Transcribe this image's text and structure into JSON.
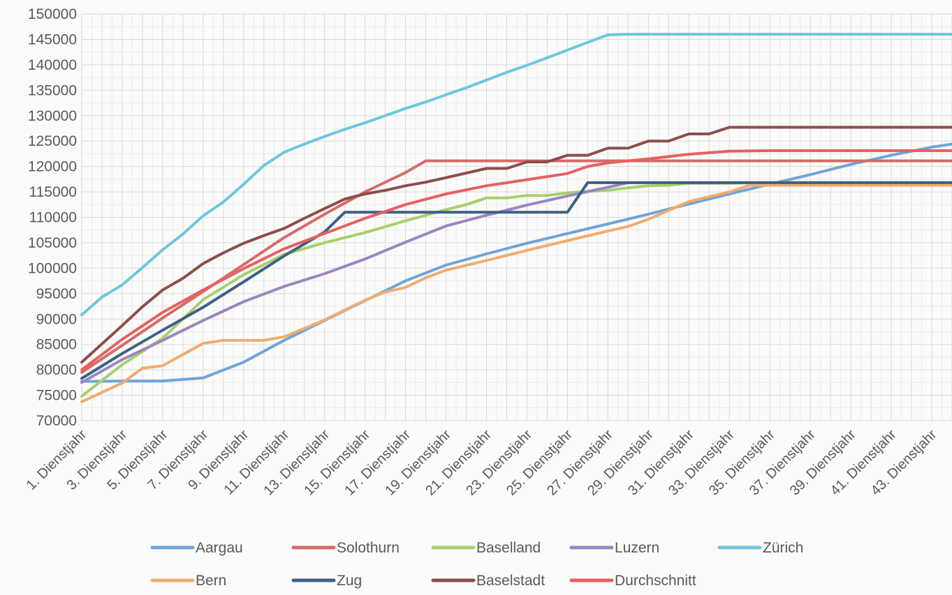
{
  "chart_data": {
    "type": "line",
    "title": "",
    "xlabel": "",
    "ylabel": "",
    "ylim": [
      70000,
      150000
    ],
    "y_ticks": [
      70000,
      75000,
      80000,
      85000,
      90000,
      95000,
      100000,
      105000,
      110000,
      115000,
      120000,
      125000,
      130000,
      135000,
      140000,
      145000,
      150000
    ],
    "x_tick_labels": [
      "1. Dienstjahr",
      "3. Dienstjahr",
      "5. Dienstjahr",
      "7. Dienstjahr",
      "9. Dienstjahr",
      "11. Dienstjahr",
      "13. Dienstjahr",
      "15. Dienstjahr",
      "17. Dienstjahr",
      "19. Dienstjahr",
      "21. Dienstjahr",
      "23. Dienstjahr",
      "25. Dienstjahr",
      "27. Dienstjahr",
      "29. Dienstjahr",
      "31. Dienstjahr",
      "33. Dienstjahr",
      "35. Dienstjahr",
      "37. Dienstjahr",
      "39. Dienstjahr",
      "41. Dienstjahr",
      "43. Dienstjahr"
    ],
    "grid": true,
    "legend_position": "bottom",
    "x_breakpoints": [
      1,
      2,
      3,
      4,
      5,
      6,
      7,
      8,
      9,
      10,
      11,
      12,
      13,
      14,
      15,
      16,
      17,
      18,
      19,
      20,
      21,
      22,
      23,
      24,
      25,
      26,
      27,
      28,
      29,
      30,
      31,
      32,
      33,
      34,
      35,
      36,
      37,
      38,
      39,
      40,
      41,
      42,
      43,
      44
    ],
    "series": [
      {
        "name": "Aargau",
        "color": "#6ea5d8",
        "x": [
          1,
          3,
          5,
          7,
          9,
          11,
          13,
          15,
          17,
          19,
          21,
          23,
          25,
          27,
          29,
          31,
          33,
          35,
          37,
          39,
          41,
          43,
          44
        ],
        "values": [
          77700,
          77800,
          77800,
          78400,
          81500,
          85800,
          89700,
          93600,
          97500,
          100600,
          102800,
          104900,
          106800,
          108700,
          110600,
          112600,
          114600,
          116500,
          118400,
          120400,
          122200,
          123800,
          124400
        ]
      },
      {
        "name": "Solothurn",
        "color": "#d66b68",
        "x": [
          1,
          3,
          5,
          7,
          9,
          11,
          13,
          15,
          17,
          18,
          20,
          44
        ],
        "values": [
          79500,
          84800,
          90200,
          95400,
          100700,
          106000,
          110600,
          115000,
          118800,
          121100,
          121100,
          121100
        ]
      },
      {
        "name": "Baselland",
        "color": "#a8cf6c",
        "x": [
          1,
          3,
          5,
          7,
          9,
          11,
          13,
          15,
          17,
          19,
          20,
          21,
          22,
          23,
          24,
          25,
          26,
          27,
          28,
          29,
          30,
          31,
          33,
          35,
          44
        ],
        "values": [
          74800,
          81000,
          86200,
          93800,
          98700,
          102700,
          105000,
          107000,
          109300,
          111500,
          112500,
          113800,
          113800,
          114300,
          114300,
          114800,
          115100,
          115300,
          115800,
          116200,
          116300,
          116700,
          116700,
          116800,
          116800
        ]
      },
      {
        "name": "Luzern",
        "color": "#9b86c0",
        "x": [
          1,
          3,
          5,
          7,
          9,
          11,
          13,
          15,
          17,
          19,
          21,
          23,
          25,
          27,
          28,
          44
        ],
        "values": [
          77500,
          82000,
          85800,
          89700,
          93400,
          96400,
          98900,
          101800,
          105100,
          108300,
          110400,
          112400,
          114200,
          115900,
          116800,
          116800
        ]
      },
      {
        "name": "Zürich",
        "color": "#6ec6dc",
        "x": [
          1,
          2,
          3,
          4,
          5,
          6,
          7,
          8,
          9,
          10,
          11,
          12,
          13,
          14,
          15,
          16,
          17,
          18,
          19,
          20,
          21,
          22,
          23,
          24,
          25,
          26,
          27,
          28,
          44
        ],
        "values": [
          90800,
          94300,
          96700,
          100100,
          103600,
          106700,
          110300,
          113000,
          116500,
          120200,
          122800,
          124400,
          125900,
          127300,
          128600,
          130000,
          131400,
          132700,
          134100,
          135500,
          137000,
          138500,
          139900,
          141400,
          142900,
          144400,
          145900,
          146000,
          146000
        ]
      },
      {
        "name": "Bern",
        "color": "#f1ac70",
        "x": [
          1,
          3,
          4,
          5,
          6,
          7,
          8,
          9,
          10,
          11,
          13,
          15,
          16,
          17,
          18,
          19,
          21,
          23,
          25,
          27,
          28,
          29,
          31,
          33,
          34,
          44
        ],
        "values": [
          73700,
          77400,
          80300,
          80800,
          83000,
          85200,
          85800,
          85800,
          85800,
          86500,
          89800,
          93700,
          95300,
          96200,
          98100,
          99600,
          101500,
          103500,
          105400,
          107300,
          108200,
          109600,
          113100,
          115000,
          116300,
          116300
        ]
      },
      {
        "name": "Zug",
        "color": "#3d6185",
        "x": [
          1,
          3,
          5,
          7,
          9,
          11,
          13,
          14,
          15,
          16,
          25,
          26,
          44
        ],
        "values": [
          78300,
          83200,
          87800,
          92300,
          97300,
          102400,
          107100,
          111000,
          111000,
          111000,
          111000,
          116800,
          116800
        ]
      },
      {
        "name": "Baselstadt",
        "color": "#8d4d4d",
        "x": [
          1,
          3,
          4,
          5,
          6,
          7,
          8,
          9,
          10,
          11,
          12,
          13,
          14,
          15,
          16,
          17,
          18,
          19,
          20,
          21,
          22,
          23,
          24,
          25,
          26,
          27,
          28,
          29,
          30,
          31,
          32,
          33,
          34,
          44
        ],
        "values": [
          81500,
          88700,
          92400,
          95700,
          98000,
          100900,
          103000,
          104900,
          106400,
          107800,
          109800,
          111700,
          113600,
          114600,
          115300,
          116200,
          116900,
          117800,
          118700,
          119600,
          119600,
          120900,
          120900,
          122200,
          122200,
          123600,
          123600,
          125000,
          125000,
          126400,
          126400,
          127700,
          127700,
          127700
        ]
      },
      {
        "name": "Durchschnitt",
        "color": "#e8605f",
        "x": [
          1,
          3,
          5,
          7,
          9,
          11,
          13,
          15,
          17,
          19,
          21,
          23,
          25,
          26,
          27,
          29,
          31,
          33,
          35,
          44
        ],
        "values": [
          80000,
          86000,
          91300,
          95700,
          99900,
          103800,
          106800,
          109800,
          112500,
          114600,
          116200,
          117400,
          118600,
          120000,
          120700,
          121500,
          122400,
          123000,
          123100,
          123100
        ]
      }
    ]
  }
}
